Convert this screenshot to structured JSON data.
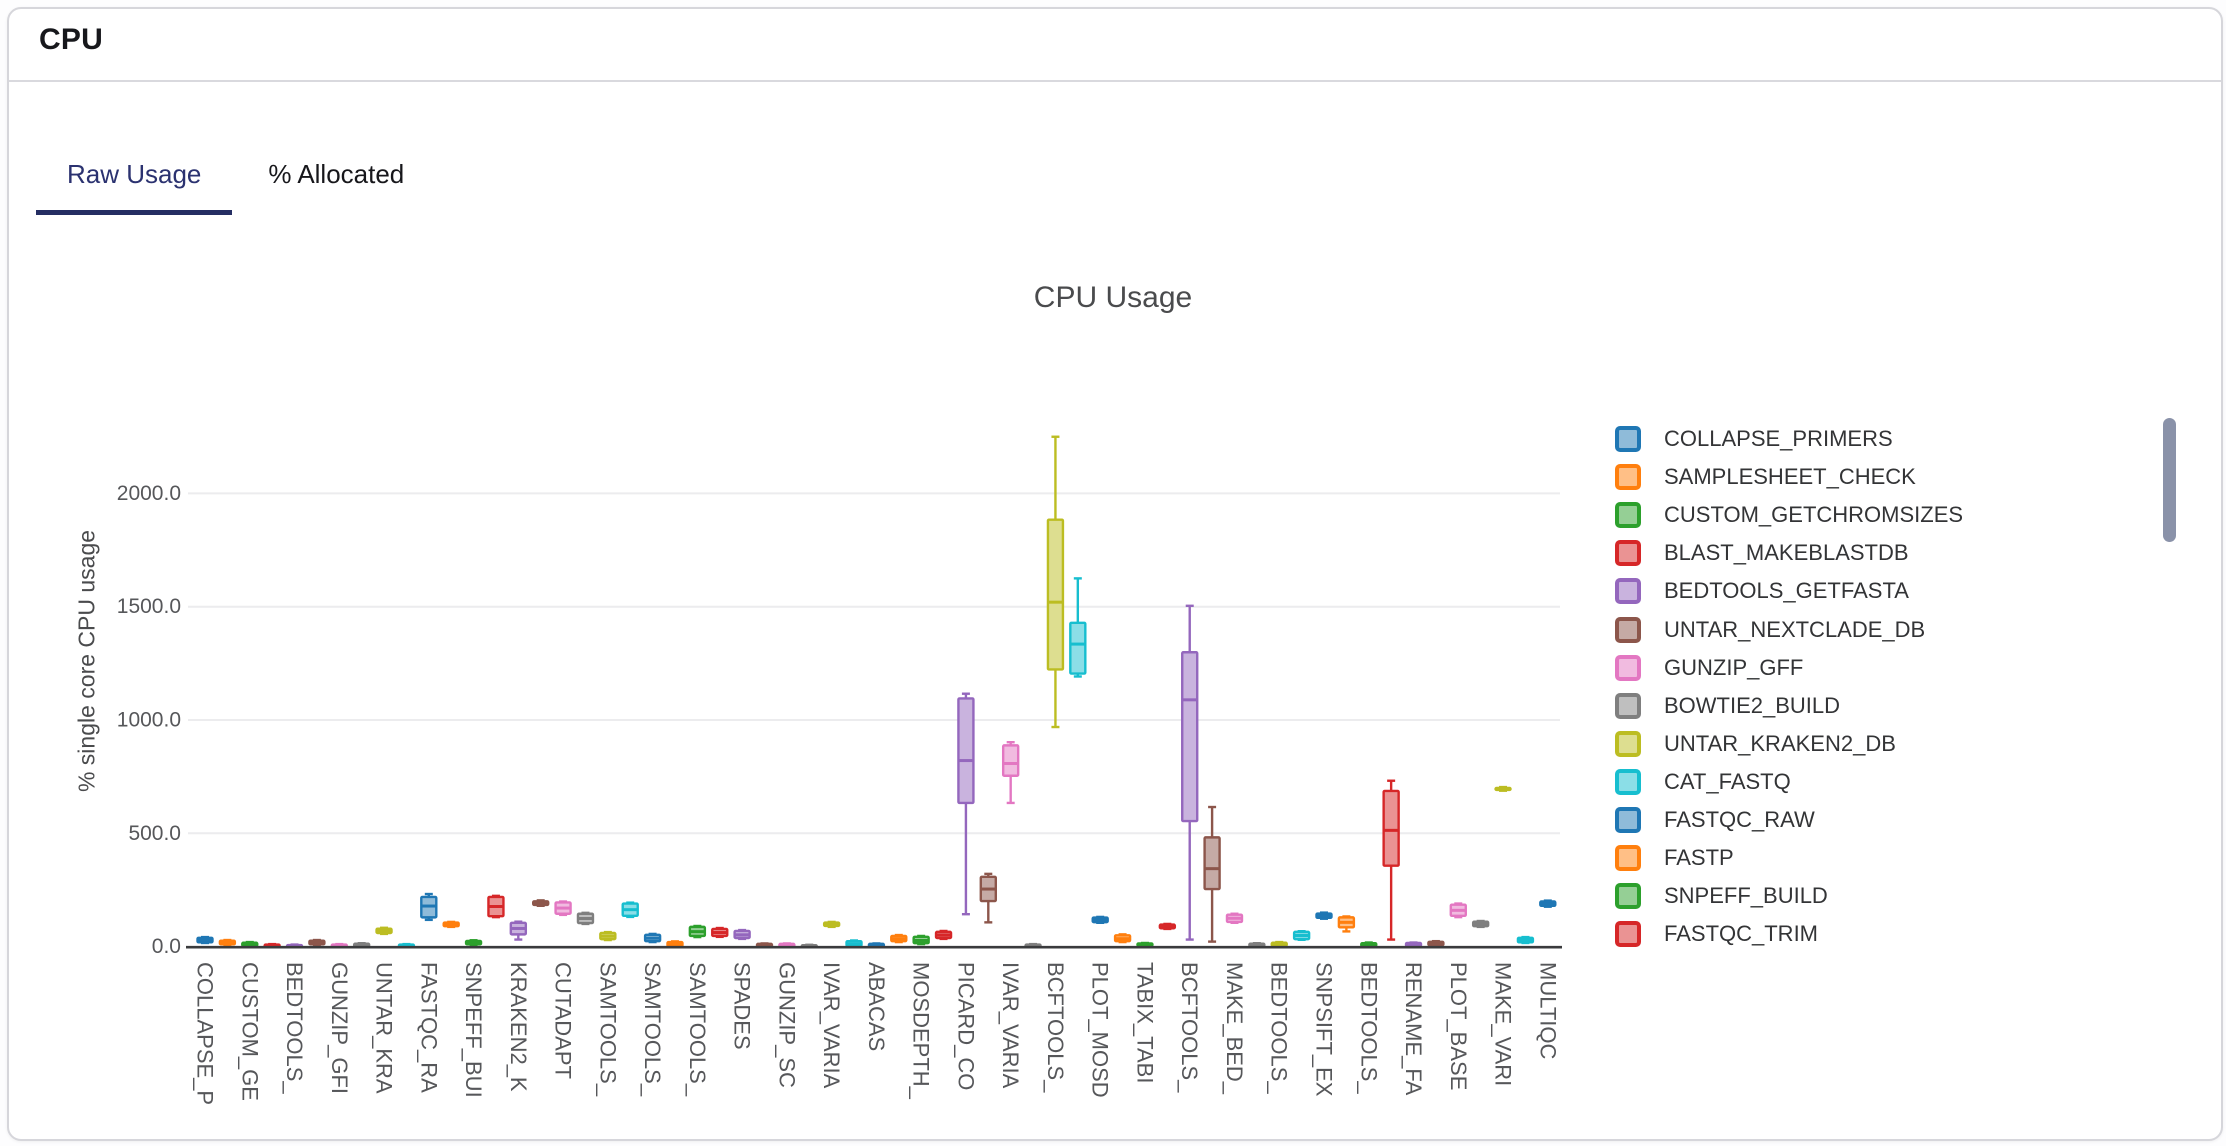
{
  "page": {
    "header": "CPU",
    "accent_color": "#2b3270",
    "card_background": "#ffffff"
  },
  "tabs": [
    {
      "label": "Raw Usage",
      "active": true
    },
    {
      "label": "% Allocated",
      "active": false
    }
  ],
  "chart_data": {
    "type": "box",
    "title": "CPU Usage",
    "xlabel": "",
    "ylabel": "% single core CPU usage",
    "ylim": [
      0,
      2300
    ],
    "grid": true,
    "legend_position": "right",
    "legend_scrollable": true,
    "ytick_values": [
      0,
      500,
      1000,
      1500,
      2000
    ],
    "ytick_labels": [
      "0.0",
      "500.0",
      "1000.0",
      "1500.0",
      "2000.0"
    ],
    "palette": [
      {
        "line": "#1f77b4",
        "fill": "#8FBBD9"
      },
      {
        "line": "#ff7f0e",
        "fill": "#FFBF86"
      },
      {
        "line": "#2ca02c",
        "fill": "#95CF95"
      },
      {
        "line": "#d62728",
        "fill": "#EA9393"
      },
      {
        "line": "#9467bd",
        "fill": "#C9B3DE"
      },
      {
        "line": "#8c564b",
        "fill": "#C5AAA5"
      },
      {
        "line": "#e377c2",
        "fill": "#F1BBE0"
      },
      {
        "line": "#7f7f7f",
        "fill": "#BFBFBF"
      },
      {
        "line": "#bcbd22",
        "fill": "#DDDE90"
      },
      {
        "line": "#17becf",
        "fill": "#8BDEE7"
      }
    ],
    "legend": [
      "COLLAPSE_PRIMERS",
      "SAMPLESHEET_CHECK",
      "CUSTOM_GETCHROMSIZES",
      "BLAST_MAKEBLASTDB",
      "BEDTOOLS_GETFASTA",
      "UNTAR_NEXTCLADE_DB",
      "GUNZIP_GFF",
      "BOWTIE2_BUILD",
      "UNTAR_KRAKEN2_DB",
      "CAT_FASTQ",
      "FASTQC_RAW",
      "FASTP",
      "SNPEFF_BUILD",
      "FASTQC_TRIM"
    ],
    "boxes": [
      {
        "tick": "COLLAPSE_P",
        "values": [
          16,
          19,
          29,
          39,
          42
        ]
      },
      {
        "tick": null,
        "values": [
          7,
          10,
          18,
          26,
          29
        ]
      },
      {
        "tick": "CUSTOM_GE",
        "values": [
          0,
          3,
          10,
          17,
          20
        ]
      },
      {
        "tick": null,
        "values": [
          0,
          1,
          5,
          9,
          11
        ]
      },
      {
        "tick": "BEDTOOLS_",
        "values": [
          0,
          1,
          4,
          7,
          9
        ]
      },
      {
        "tick": null,
        "values": [
          7,
          10,
          18,
          26,
          29
        ]
      },
      {
        "tick": "GUNZIP_GFI",
        "values": [
          0,
          1,
          5,
          9,
          11
        ]
      },
      {
        "tick": null,
        "values": [
          0,
          1,
          6,
          13,
          15
        ]
      },
      {
        "tick": "UNTAR_KRA",
        "values": [
          56,
          60,
          70,
          79,
          83
        ]
      },
      {
        "tick": null,
        "values": [
          0,
          1,
          5,
          9,
          11
        ]
      },
      {
        "tick": "FASTQC_RA",
        "values": [
          118,
          129,
          179,
          219,
          232
        ]
      },
      {
        "tick": null,
        "values": [
          87,
          90,
          98,
          106,
          109
        ]
      },
      {
        "tick": "SNPEFF_BUI",
        "values": [
          7,
          10,
          17,
          25,
          28
        ]
      },
      {
        "tick": null,
        "values": [
          130,
          134,
          177,
          219,
          224
        ]
      },
      {
        "tick": "KRAKEN2_K",
        "values": [
          31,
          54,
          80,
          105,
          110
        ]
      },
      {
        "tick": null,
        "values": [
          180,
          184,
          192,
          200,
          204
        ]
      },
      {
        "tick": "CUTADAPT",
        "values": [
          140,
          145,
          170,
          195,
          199
        ]
      },
      {
        "tick": null,
        "values": [
          100,
          104,
          124,
          145,
          149
        ]
      },
      {
        "tick": "SAMTOOLS_",
        "values": [
          29,
          33,
          46,
          60,
          64
        ]
      },
      {
        "tick": null,
        "values": [
          131,
          136,
          163,
          190,
          194
        ]
      },
      {
        "tick": "SAMTOOLS_",
        "values": [
          20,
          24,
          37,
          52,
          56
        ]
      },
      {
        "tick": null,
        "values": [
          0,
          2,
          10,
          20,
          23
        ]
      },
      {
        "tick": "SAMTOOLS_",
        "values": [
          42,
          47,
          66,
          87,
          91
        ]
      },
      {
        "tick": null,
        "values": [
          43,
          47,
          62,
          78,
          82
        ]
      },
      {
        "tick": "SPADES",
        "values": [
          34,
          38,
          52,
          69,
          73
        ]
      },
      {
        "tick": null,
        "values": [
          0,
          1,
          6,
          12,
          14
        ]
      },
      {
        "tick": "GUNZIP_SC",
        "values": [
          0,
          1,
          6,
          12,
          14
        ]
      },
      {
        "tick": null,
        "values": [
          0,
          1,
          3,
          6,
          8
        ]
      },
      {
        "tick": "IVAR_VARIA",
        "values": [
          87,
          91,
          98,
          106,
          109
        ]
      },
      {
        "tick": null,
        "values": [
          0,
          3,
          12,
          24,
          27
        ]
      },
      {
        "tick": "ABACAS",
        "values": [
          0,
          1,
          6,
          12,
          14
        ]
      },
      {
        "tick": null,
        "values": [
          20,
          24,
          35,
          47,
          51
        ]
      },
      {
        "tick": "MOSDEPTH_",
        "values": [
          11,
          15,
          27,
          43,
          47
        ]
      },
      {
        "tick": null,
        "values": [
          34,
          38,
          51,
          65,
          69
        ]
      },
      {
        "tick": "PICARD_CO",
        "values": [
          143,
          634,
          821,
          1095,
          1116
        ]
      },
      {
        "tick": null,
        "values": [
          107,
          201,
          254,
          308,
          321
        ]
      },
      {
        "tick": "IVAR_VARIA",
        "values": [
          634,
          754,
          808,
          888,
          902
        ]
      },
      {
        "tick": null,
        "values": [
          0,
          1,
          5,
          9,
          11
        ]
      },
      {
        "tick": "BCFTOOLS_",
        "values": [
          969,
          1223,
          1520,
          1884,
          2250
        ]
      },
      {
        "tick": null,
        "values": [
          1192,
          1205,
          1335,
          1429,
          1625
        ]
      },
      {
        "tick": "PLOT_MOSD",
        "values": [
          105,
          108,
          118,
          128,
          131
        ]
      },
      {
        "tick": null,
        "values": [
          20,
          24,
          35,
          50,
          54
        ]
      },
      {
        "tick": "TABIX_TABI",
        "values": [
          2,
          4,
          9,
          14,
          16
        ]
      },
      {
        "tick": null,
        "values": [
          78,
          81,
          89,
          97,
          100
        ]
      },
      {
        "tick": "BCFTOOLS_",
        "values": [
          31,
          554,
          1089,
          1299,
          1504
        ]
      },
      {
        "tick": null,
        "values": [
          22,
          254,
          344,
          482,
          616
        ]
      },
      {
        "tick": "MAKE_BED_",
        "values": [
          105,
          109,
          125,
          141,
          145
        ]
      },
      {
        "tick": null,
        "values": [
          0,
          2,
          7,
          13,
          15
        ]
      },
      {
        "tick": "BEDTOOLS_",
        "values": [
          2,
          4,
          10,
          17,
          20
        ]
      },
      {
        "tick": null,
        "values": [
          30,
          33,
          49,
          65,
          68
        ]
      },
      {
        "tick": "SNPSIFT_EX",
        "values": [
          123,
          127,
          136,
          146,
          150
        ]
      },
      {
        "tick": null,
        "values": [
          67,
          85,
          107,
          129,
          133
        ]
      },
      {
        "tick": "BEDTOOLS_",
        "values": [
          0,
          2,
          8,
          15,
          18
        ]
      },
      {
        "tick": null,
        "values": [
          31,
          357,
          513,
          687,
          732
        ]
      },
      {
        "tick": "RENAME_FA",
        "values": [
          0,
          2,
          8,
          16,
          18
        ]
      },
      {
        "tick": null,
        "values": [
          3,
          6,
          13,
          21,
          24
        ]
      },
      {
        "tick": "PLOT_BASE",
        "values": [
          130,
          136,
          160,
          185,
          190
        ]
      },
      {
        "tick": null,
        "values": [
          87,
          90,
          100,
          110,
          113
        ]
      },
      {
        "tick": "MAKE_VARI",
        "values": [
          688,
          692,
          696,
          700,
          704
        ]
      },
      {
        "tick": null,
        "values": [
          16,
          19,
          29,
          39,
          42
        ]
      },
      {
        "tick": "MULTIQC",
        "values": [
          176,
          180,
          190,
          199,
          203
        ]
      }
    ]
  }
}
